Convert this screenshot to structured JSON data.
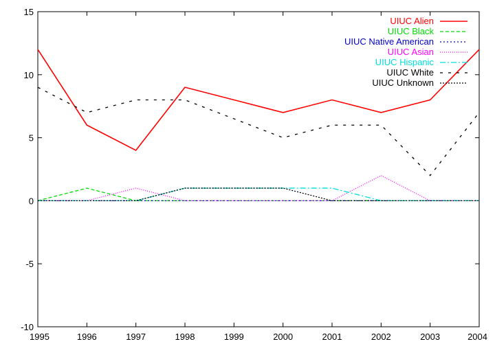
{
  "chart_data": {
    "type": "line",
    "title": "",
    "xlabel": "",
    "ylabel": "",
    "xlim": [
      1995,
      2004
    ],
    "ylim": [
      -10,
      15
    ],
    "x_ticks": [
      "1995",
      "1996",
      "1997",
      "1998",
      "1999",
      "2000",
      "2001",
      "2002",
      "2003",
      "2004"
    ],
    "y_ticks": [
      "15",
      "10",
      "5",
      "0",
      "-5",
      "-10"
    ],
    "grid": false,
    "legend_position": "top-right",
    "x": [
      1995,
      1996,
      1997,
      1998,
      1999,
      2000,
      2001,
      2002,
      2003,
      2004
    ],
    "series": [
      {
        "name": "UIUC Alien",
        "color": "#ff0000",
        "dash": "solid",
        "values": [
          12,
          6,
          4,
          9,
          8,
          7,
          8,
          7,
          8,
          12
        ]
      },
      {
        "name": "UIUC Black",
        "color": "#00dd00",
        "dash": "dashed",
        "values": [
          0,
          1,
          0,
          0,
          0,
          0,
          0,
          0,
          0,
          0
        ]
      },
      {
        "name": "UIUC Native American",
        "color": "#0000cc",
        "dash": "dotted",
        "values": [
          0,
          0,
          0,
          0,
          0,
          0,
          0,
          0,
          0,
          0
        ]
      },
      {
        "name": "UIUC Asian",
        "color": "#ff00ff",
        "dash": "fine-dotted",
        "values": [
          0,
          0,
          1,
          0,
          0,
          0,
          0,
          2,
          0,
          0
        ]
      },
      {
        "name": "UIUC Hispanic",
        "color": "#00dddd",
        "dash": "dash-dot",
        "values": [
          0,
          0,
          0,
          1,
          1,
          1,
          1,
          0,
          0,
          0
        ]
      },
      {
        "name": "UIUC White",
        "color": "#000000",
        "dash": "sparse-dashed",
        "values": [
          9,
          7,
          8,
          8,
          6.5,
          5,
          6,
          6,
          2,
          7
        ]
      },
      {
        "name": "UIUC Unknown",
        "color": "#000000",
        "dash": "dense-dotted",
        "values": [
          0,
          0,
          0,
          1,
          1,
          1,
          0,
          0,
          0,
          0
        ]
      }
    ]
  }
}
